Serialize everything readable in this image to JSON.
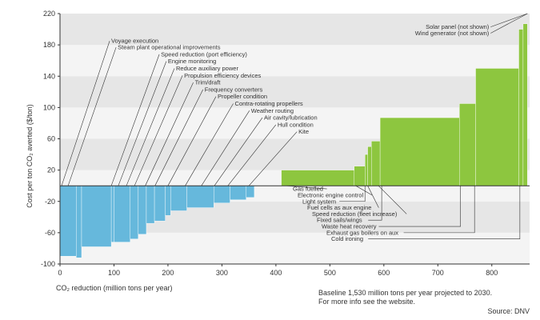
{
  "chart_data": {
    "type": "bar",
    "subtype": "marginal-abatement-cost-curve",
    "xlabel": "CO₂ reduction (million tons per year)",
    "ylabel": "Cost per ton CO₂ averted ($/ton)",
    "xlim": [
      0,
      870
    ],
    "ylim": [
      -100,
      220
    ],
    "x_ticks": [
      0,
      100,
      200,
      300,
      400,
      500,
      600,
      700,
      800
    ],
    "y_ticks": [
      -100,
      -60,
      -20,
      20,
      60,
      100,
      140,
      180,
      220
    ],
    "grid": true,
    "colors": {
      "negative": "#66b8dc",
      "positive": "#8dc63f",
      "band_dark": "#e6e6e6",
      "band_light": "#f4f4f4",
      "axis": "#333333",
      "leader": "#333333"
    },
    "bars": [
      {
        "x0": 0,
        "x1": 30,
        "y": -90
      },
      {
        "x0": 30,
        "x1": 40,
        "y": -92
      },
      {
        "x0": 40,
        "x1": 95,
        "y": -78
      },
      {
        "x0": 95,
        "x1": 100,
        "y": -72
      },
      {
        "x0": 100,
        "x1": 130,
        "y": -72
      },
      {
        "x0": 130,
        "x1": 145,
        "y": -68
      },
      {
        "x0": 145,
        "x1": 160,
        "y": -62
      },
      {
        "x0": 160,
        "x1": 175,
        "y": -48
      },
      {
        "x0": 175,
        "x1": 195,
        "y": -45
      },
      {
        "x0": 195,
        "x1": 205,
        "y": -38
      },
      {
        "x0": 205,
        "x1": 235,
        "y": -32
      },
      {
        "x0": 235,
        "x1": 285,
        "y": -28
      },
      {
        "x0": 285,
        "x1": 315,
        "y": -22
      },
      {
        "x0": 315,
        "x1": 345,
        "y": -18
      },
      {
        "x0": 345,
        "x1": 360,
        "y": -15
      },
      {
        "x0": 410,
        "x1": 545,
        "y": 20
      },
      {
        "x0": 545,
        "x1": 565,
        "y": 25
      },
      {
        "x0": 565,
        "x1": 570,
        "y": 40
      },
      {
        "x0": 570,
        "x1": 577,
        "y": 50
      },
      {
        "x0": 577,
        "x1": 593,
        "y": 57
      },
      {
        "x0": 593,
        "x1": 740,
        "y": 87
      },
      {
        "x0": 740,
        "x1": 770,
        "y": 105
      },
      {
        "x0": 770,
        "x1": 850,
        "y": 150
      },
      {
        "x0": 850,
        "x1": 858,
        "y": 200
      },
      {
        "x0": 858,
        "x1": 866,
        "y": 207
      }
    ],
    "labels_left": [
      {
        "text": "Voyage execution",
        "x": 3,
        "ly": 185
      },
      {
        "text": "Steam plant operational improvements",
        "x": 15,
        "ly": 177
      },
      {
        "text": "Speed reduction (port efficiency)",
        "x": 95,
        "ly": 168
      },
      {
        "text": "Engine monitoring",
        "x": 108,
        "ly": 159
      },
      {
        "text": "Reduce auxiliary power",
        "x": 123,
        "ly": 150
      },
      {
        "text": "Propulsion efficiency devices",
        "x": 138,
        "ly": 141
      },
      {
        "text": "Trim/draft",
        "x": 158,
        "ly": 132
      },
      {
        "text": "Frequency converters",
        "x": 176,
        "ly": 123
      },
      {
        "text": "Propeller condition",
        "x": 200,
        "ly": 114
      },
      {
        "text": "Contra-rotating propellers",
        "x": 232,
        "ly": 105
      },
      {
        "text": "Weather routing",
        "x": 262,
        "ly": 96
      },
      {
        "text": "Air cavity/lubrication",
        "x": 286,
        "ly": 87
      },
      {
        "text": "Hull condition",
        "x": 311,
        "ly": 78
      },
      {
        "text": "Kite",
        "x": 350,
        "ly": 69
      }
    ],
    "labels_right_top": [
      {
        "text": "Solar panel (not shown)",
        "x": 866,
        "ly": 203
      },
      {
        "text": "Wind generator (not shown)",
        "x": 866,
        "ly": 195
      }
    ],
    "labels_right_bottom": [
      {
        "text": "Gas fuelled",
        "x": 420,
        "ly": -4
      },
      {
        "text": "Electronic engine control",
        "x": 548,
        "ly": -12
      },
      {
        "text": "Light system",
        "x": 565,
        "ly": -20
      },
      {
        "text": "Fuel cells as aux engine",
        "x": 570,
        "ly": -28
      },
      {
        "text": "Speed reduction (fleet increase)",
        "x": 590,
        "ly": -36
      },
      {
        "text": "Fixed sails/wings",
        "x": 596,
        "ly": -44
      },
      {
        "text": "Waste heat recovery",
        "x": 742,
        "ly": -52
      },
      {
        "text": "Exhaust gas boilers on aux",
        "x": 768,
        "ly": -60
      },
      {
        "text": "Cold ironing",
        "x": 852,
        "ly": -68
      }
    ],
    "notes": [
      "Baseline 1,530 million tons per year projected to 2030.",
      "For more info see the website.",
      "Source: DNV"
    ]
  }
}
